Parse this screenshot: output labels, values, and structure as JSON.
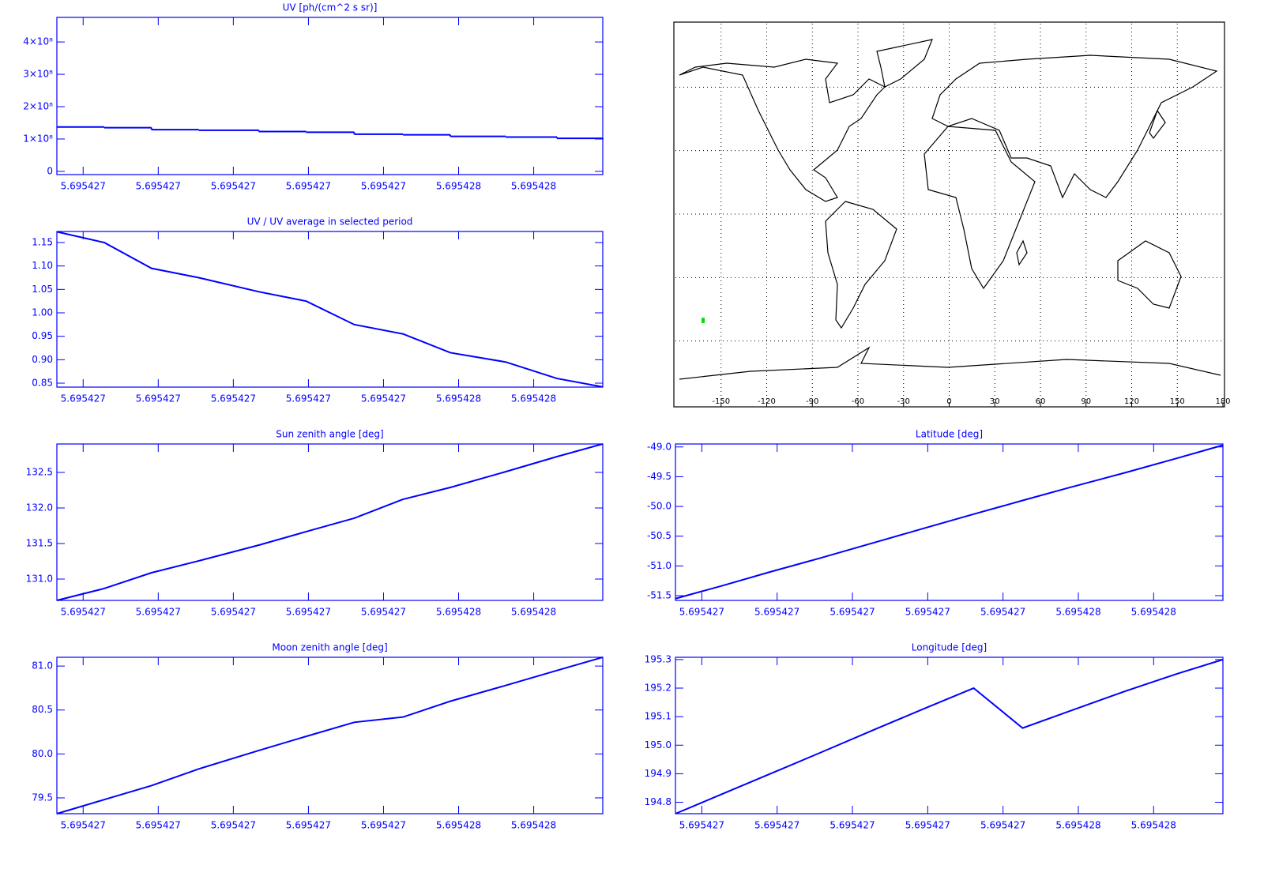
{
  "chart_data": [
    {
      "type": "line",
      "step": true,
      "title": "UV [ph/(cm^2 s sr)]",
      "color": "#0000ff",
      "x": [
        5.695427015,
        5.695427078,
        5.695427141,
        5.695427204,
        5.695427284,
        5.695427347,
        5.695427411,
        5.695427476,
        5.695427539,
        5.695427613,
        5.695427681,
        5.695427742
      ],
      "values": [
        137000000,
        135000000,
        129000000,
        127000000,
        123000000,
        121000000,
        115000000,
        113000000,
        108000000,
        106000000,
        102000000,
        99000000
      ],
      "xlim": [
        5.695427015,
        5.695427742
      ],
      "xticks": [
        {
          "value": 5.69542705,
          "label": "5.695427"
        },
        {
          "value": 5.69542715,
          "label": "5.695427"
        },
        {
          "value": 5.69542725,
          "label": "5.695427"
        },
        {
          "value": 5.69542735,
          "label": "5.695427"
        },
        {
          "value": 5.69542745,
          "label": "5.695427"
        },
        {
          "value": 5.69542755,
          "label": "5.695428"
        },
        {
          "value": 5.69542765,
          "label": "5.695428"
        }
      ],
      "ylim": [
        -10000000,
        476000000
      ],
      "yticks": [
        0,
        {
          "value": 100000000,
          "label": "1×10⁸"
        },
        {
          "value": 200000000,
          "label": "2×10⁸"
        },
        {
          "value": 300000000,
          "label": "3×10⁸"
        },
        {
          "value": 400000000,
          "label": "4×10⁸"
        }
      ]
    },
    {
      "type": "map",
      "color": "#000000",
      "grid": true,
      "xlim": [
        -180,
        180
      ],
      "ylim": [
        -90,
        90
      ],
      "xticks": [
        -150,
        -120,
        -90,
        -60,
        -30,
        0,
        30,
        60,
        90,
        120,
        150,
        180
      ],
      "ygrid": [
        -60,
        -30,
        0,
        30,
        60
      ],
      "series": [
        {
          "color": "#00e000",
          "x": [
            -161.8,
            -161.8
          ],
          "values": [
            -51.5,
            -49.0
          ]
        }
      ]
    },
    {
      "type": "line",
      "title": "UV / UV average in selected period",
      "color": "#0000ff",
      "x": [
        5.695427015,
        5.695427078,
        5.695427141,
        5.695427204,
        5.695427284,
        5.695427347,
        5.695427411,
        5.695427476,
        5.695427539,
        5.695427613,
        5.695427681,
        5.695427742
      ],
      "values": [
        1.173,
        1.15,
        1.095,
        1.075,
        1.045,
        1.025,
        0.975,
        0.955,
        0.915,
        0.895,
        0.86,
        0.842
      ],
      "xlim": [
        5.695427015,
        5.695427742
      ],
      "xticks": [
        {
          "value": 5.69542705,
          "label": "5.695427"
        },
        {
          "value": 5.69542715,
          "label": "5.695427"
        },
        {
          "value": 5.69542725,
          "label": "5.695427"
        },
        {
          "value": 5.69542735,
          "label": "5.695427"
        },
        {
          "value": 5.69542745,
          "label": "5.695427"
        },
        {
          "value": 5.69542755,
          "label": "5.695428"
        },
        {
          "value": 5.69542765,
          "label": "5.695428"
        }
      ],
      "ylim": [
        0.8416,
        1.1736
      ],
      "yticks": [
        0.85,
        {
          "value": 0.9,
          "label": "0.90"
        },
        0.95,
        {
          "value": 1.0,
          "label": "1.00"
        },
        1.05,
        {
          "value": 1.1,
          "label": "1.10"
        },
        1.15
      ]
    },
    {
      "type": "line",
      "title": "Sun zenith angle [deg]",
      "color": "#0000ff",
      "x": [
        5.695427015,
        5.695427078,
        5.695427141,
        5.695427204,
        5.695427284,
        5.695427347,
        5.695427411,
        5.695427476,
        5.695427539,
        5.695427613,
        5.695427681,
        5.695427742
      ],
      "values": [
        130.7,
        130.867,
        131.089,
        131.256,
        131.478,
        131.667,
        131.856,
        132.122,
        132.289,
        132.511,
        132.722,
        132.9
      ],
      "xlim": [
        5.695427015,
        5.695427742
      ],
      "xticks": [
        {
          "value": 5.69542705,
          "label": "5.695427"
        },
        {
          "value": 5.69542715,
          "label": "5.695427"
        },
        {
          "value": 5.69542725,
          "label": "5.695427"
        },
        {
          "value": 5.69542735,
          "label": "5.695427"
        },
        {
          "value": 5.69542745,
          "label": "5.695427"
        },
        {
          "value": 5.69542755,
          "label": "5.695428"
        },
        {
          "value": 5.69542765,
          "label": "5.695428"
        }
      ],
      "ylim": [
        130.7,
        132.9
      ],
      "yticks": [
        {
          "value": 131.0,
          "label": "131.0"
        },
        131.5,
        {
          "value": 132.0,
          "label": "132.0"
        },
        132.5
      ]
    },
    {
      "type": "line",
      "title": "Latitude [deg]",
      "color": "#0000ff",
      "x": [
        5.695427015,
        5.695427078,
        5.695427141,
        5.695427204,
        5.695427284,
        5.695427347,
        5.695427411,
        5.695427476,
        5.695427539,
        5.695427613,
        5.695427681,
        5.695427742
      ],
      "values": [
        -51.55,
        -51.33,
        -51.1,
        -50.88,
        -50.59,
        -50.36,
        -50.13,
        -49.9,
        -49.68,
        -49.43,
        -49.19,
        -48.97
      ],
      "xlim": [
        5.695427015,
        5.695427742
      ],
      "xticks": [
        {
          "value": 5.69542705,
          "label": "5.695427"
        },
        {
          "value": 5.69542715,
          "label": "5.695427"
        },
        {
          "value": 5.69542725,
          "label": "5.695427"
        },
        {
          "value": 5.69542735,
          "label": "5.695427"
        },
        {
          "value": 5.69542745,
          "label": "5.695427"
        },
        {
          "value": 5.69542755,
          "label": "5.695428"
        },
        {
          "value": 5.69542765,
          "label": "5.695428"
        }
      ],
      "ylim": [
        -51.58,
        -48.95
      ],
      "yticks": [
        -51.5,
        {
          "value": -51.0,
          "label": "-51.0"
        },
        -50.5,
        {
          "value": -50.0,
          "label": "-50.0"
        },
        -49.5,
        {
          "value": -49.0,
          "label": "-49.0"
        }
      ]
    },
    {
      "type": "line",
      "title": "Moon zenith angle [deg]",
      "color": "#0000ff",
      "x": [
        5.695427015,
        5.695427078,
        5.695427141,
        5.695427204,
        5.695427284,
        5.695427347,
        5.695427411,
        5.695427476,
        5.695427539,
        5.695427613,
        5.695427681,
        5.695427742
      ],
      "values": [
        79.32,
        79.48,
        79.64,
        79.83,
        80.04,
        80.2,
        80.36,
        80.42,
        80.6,
        80.78,
        80.95,
        81.1
      ],
      "xlim": [
        5.695427015,
        5.695427742
      ],
      "xticks": [
        {
          "value": 5.69542705,
          "label": "5.695427"
        },
        {
          "value": 5.69542715,
          "label": "5.695427"
        },
        {
          "value": 5.69542725,
          "label": "5.695427"
        },
        {
          "value": 5.69542735,
          "label": "5.695427"
        },
        {
          "value": 5.69542745,
          "label": "5.695427"
        },
        {
          "value": 5.69542755,
          "label": "5.695428"
        },
        {
          "value": 5.69542765,
          "label": "5.695428"
        }
      ],
      "ylim": [
        79.32,
        81.1
      ],
      "yticks": [
        79.5,
        {
          "value": 80.0,
          "label": "80.0"
        },
        80.5,
        {
          "value": 81.0,
          "label": "81.0"
        }
      ]
    },
    {
      "type": "line",
      "title": "Longitude [deg]",
      "color": "#0000ff",
      "x": [
        5.695427015,
        5.695427078,
        5.695427141,
        5.695427204,
        5.695427284,
        5.695427347,
        5.695427411,
        5.695427476,
        5.695427539,
        5.695427613,
        5.695427681,
        5.695427742
      ],
      "values": [
        194.76,
        194.83,
        194.9,
        194.97,
        195.06,
        195.13,
        195.2,
        195.06,
        195.12,
        195.19,
        195.25,
        195.3
      ],
      "xlim": [
        5.695427015,
        5.695427742
      ],
      "xticks": [
        {
          "value": 5.69542705,
          "label": "5.695427"
        },
        {
          "value": 5.69542715,
          "label": "5.695427"
        },
        {
          "value": 5.69542725,
          "label": "5.695427"
        },
        {
          "value": 5.69542735,
          "label": "5.695427"
        },
        {
          "value": 5.69542745,
          "label": "5.695427"
        },
        {
          "value": 5.69542755,
          "label": "5.695428"
        },
        {
          "value": 5.69542765,
          "label": "5.695428"
        }
      ],
      "ylim": [
        194.76,
        195.308
      ],
      "yticks": [
        194.8,
        194.9,
        {
          "value": 195.0,
          "label": "195.0"
        },
        195.1,
        195.2,
        195.3
      ]
    }
  ]
}
